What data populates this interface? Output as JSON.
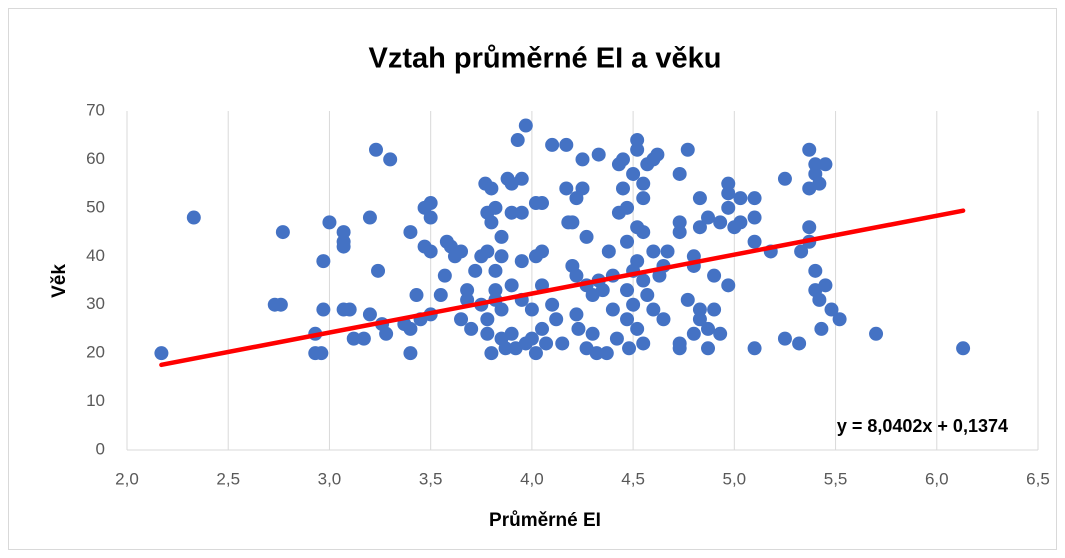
{
  "chart_data": {
    "type": "scatter",
    "title": "Vztah průměrné EI a věku",
    "x_label": "Průměrné EI",
    "y_label": "Věk",
    "xlim": [
      2,
      6.5
    ],
    "ylim": [
      0,
      70
    ],
    "xticks": [
      {
        "value": 2,
        "label": "2,0"
      },
      {
        "value": 2.5,
        "label": "2,5"
      },
      {
        "value": 3,
        "label": "3,0"
      },
      {
        "value": 3.5,
        "label": "3,5"
      },
      {
        "value": 4,
        "label": "4,0"
      },
      {
        "value": 4.5,
        "label": "4,5"
      },
      {
        "value": 5,
        "label": "5,0"
      },
      {
        "value": 5.5,
        "label": "5,5"
      },
      {
        "value": 6,
        "label": "6,0"
      },
      {
        "value": 6.5,
        "label": "6,5"
      }
    ],
    "yticks": [
      0,
      10,
      20,
      30,
      40,
      50,
      60,
      70
    ],
    "grid": "x",
    "series": [
      {
        "color": "#4472c4",
        "x": [
          2.17,
          2.33,
          2.73,
          2.76,
          2.77,
          2.93,
          2.93,
          2.96,
          2.97,
          2.97,
          3.0,
          3.07,
          3.07,
          3.07,
          3.07,
          3.1,
          3.12,
          3.17,
          3.2,
          3.2,
          3.23,
          3.24,
          3.26,
          3.28,
          3.3,
          3.37,
          3.4,
          3.4,
          3.4,
          3.43,
          3.45,
          3.47,
          3.47,
          3.5,
          3.5,
          3.5,
          3.5,
          3.55,
          3.57,
          3.58,
          3.6,
          3.62,
          3.65,
          3.65,
          3.68,
          3.68,
          3.7,
          3.72,
          3.75,
          3.75,
          3.77,
          3.78,
          3.78,
          3.78,
          3.78,
          3.8,
          3.8,
          3.8,
          3.82,
          3.82,
          3.82,
          3.82,
          3.85,
          3.85,
          3.85,
          3.85,
          3.87,
          3.88,
          3.9,
          3.9,
          3.9,
          3.9,
          3.92,
          3.93,
          3.95,
          3.95,
          3.95,
          3.95,
          3.97,
          3.97,
          4.0,
          4.0,
          4.02,
          4.02,
          4.02,
          4.05,
          4.05,
          4.05,
          4.05,
          4.07,
          4.1,
          4.1,
          4.12,
          4.15,
          4.17,
          4.17,
          4.18,
          4.2,
          4.2,
          4.22,
          4.22,
          4.22,
          4.23,
          4.25,
          4.25,
          4.27,
          4.27,
          4.27,
          4.3,
          4.3,
          4.32,
          4.33,
          4.33,
          4.35,
          4.37,
          4.38,
          4.4,
          4.4,
          4.42,
          4.43,
          4.43,
          4.45,
          4.45,
          4.47,
          4.47,
          4.47,
          4.47,
          4.48,
          4.5,
          4.5,
          4.5,
          4.52,
          4.52,
          4.52,
          4.52,
          4.52,
          4.55,
          4.55,
          4.55,
          4.55,
          4.55,
          4.57,
          4.57,
          4.6,
          4.6,
          4.6,
          4.62,
          4.63,
          4.65,
          4.65,
          4.67,
          4.73,
          4.73,
          4.73,
          4.73,
          4.73,
          4.77,
          4.77,
          4.8,
          4.8,
          4.8,
          4.83,
          4.83,
          4.83,
          4.83,
          4.87,
          4.87,
          4.87,
          4.9,
          4.9,
          4.93,
          4.93,
          4.97,
          4.97,
          4.97,
          4.97,
          5.0,
          5.03,
          5.03,
          5.1,
          5.1,
          5.1,
          5.1,
          5.18,
          5.25,
          5.25,
          5.32,
          5.33,
          5.37,
          5.37,
          5.37,
          5.37,
          5.4,
          5.4,
          5.4,
          5.4,
          5.42,
          5.42,
          5.43,
          5.45,
          5.45,
          5.48,
          5.52,
          5.7,
          6.13
        ],
        "values": [
          20,
          48,
          30,
          30,
          45,
          24,
          20,
          20,
          29,
          39,
          47,
          45,
          43,
          42,
          29,
          29,
          23,
          23,
          48,
          28,
          62,
          37,
          26,
          24,
          60,
          26,
          45,
          25,
          20,
          32,
          27,
          42,
          50,
          51,
          48,
          41,
          28,
          32,
          36,
          43,
          42,
          40,
          41,
          27,
          33,
          31,
          25,
          37,
          40,
          30,
          55,
          49,
          41,
          27,
          24,
          20,
          54,
          47,
          50,
          37,
          33,
          31,
          44,
          40,
          29,
          23,
          21,
          56,
          55,
          49,
          34,
          24,
          21,
          64,
          56,
          49,
          39,
          31,
          67,
          22,
          29,
          23,
          51,
          40,
          20,
          51,
          41,
          34,
          25,
          22,
          63,
          30,
          27,
          22,
          63,
          54,
          47,
          47,
          38,
          52,
          36,
          28,
          25,
          54,
          60,
          44,
          34,
          21,
          32,
          24,
          20,
          61,
          35,
          33,
          20,
          41,
          36,
          29,
          23,
          49,
          59,
          60,
          54,
          43,
          50,
          33,
          27,
          21,
          57,
          37,
          30,
          64,
          62,
          46,
          39,
          25,
          55,
          52,
          45,
          35,
          22,
          59,
          32,
          60,
          41,
          29,
          61,
          36,
          38,
          27,
          41,
          57,
          47,
          45,
          22,
          21,
          62,
          31,
          40,
          38,
          24,
          52,
          46,
          29,
          27,
          48,
          25,
          21,
          36,
          29,
          47,
          24,
          55,
          53,
          50,
          34,
          46,
          52,
          47,
          52,
          48,
          43,
          21,
          41,
          56,
          23,
          22,
          41,
          62,
          54,
          46,
          43,
          59,
          57,
          37,
          33,
          55,
          31,
          25,
          59,
          34,
          29,
          27,
          24,
          21
        ]
      }
    ],
    "trendline": {
      "slope": 8.0402,
      "intercept": 0.1374,
      "color": "#ff0000",
      "label": "y = 8,0402x + 0,1374"
    }
  }
}
